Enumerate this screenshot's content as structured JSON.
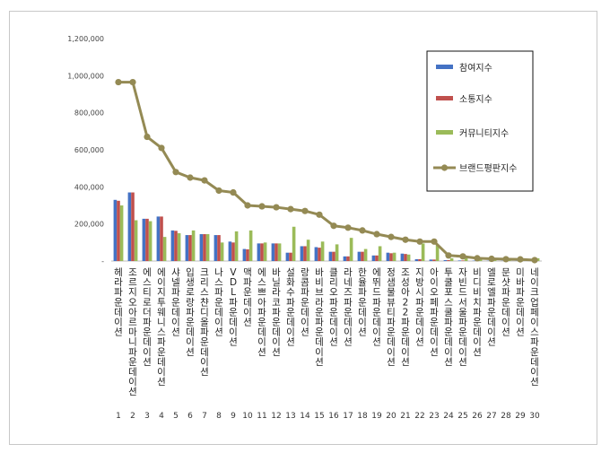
{
  "chart_data": {
    "type": "bar",
    "title": "",
    "xlabel": "",
    "ylabel": "",
    "ylim": [
      0,
      1200000
    ],
    "yticks": [
      "-",
      "200,000",
      "400,000",
      "600,000",
      "800,000",
      "1,000,000",
      "1,200,000"
    ],
    "grid": false,
    "legend_position": "right",
    "ranks": [
      "1",
      "2",
      "3",
      "4",
      "5",
      "6",
      "7",
      "8",
      "9",
      "10",
      "11",
      "12",
      "13",
      "14",
      "15",
      "16",
      "17",
      "18",
      "19",
      "20",
      "21",
      "22",
      "23",
      "24",
      "25",
      "26",
      "27",
      "28",
      "29",
      "30"
    ],
    "categories": [
      "헤라 파운데이션",
      "조르지오아르마니 파운데이션",
      "에스티로더 파운데이션",
      "에이지투웨니스 파운데이션",
      "샤넬 파운데이션",
      "입생로랑 파운데이션",
      "크리스챤디올 파운데이션",
      "나스 파운데이션",
      "VDL 파운데이션",
      "맥 파운데이션",
      "에스쁘아 파운데이션",
      "바닐라코 파운데이션",
      "설화수 파운데이션",
      "랑콤 파운데이션",
      "바비브라운 파운데이션",
      "클리오 파운데이션",
      "라네즈 파운데이션",
      "한율 파운데이션",
      "에뛰드 파운데이션",
      "정샘물뷰티 파운데이션",
      "조성아22 파운데이션",
      "지방시 파운데이션",
      "아이오페 파운데이션",
      "투쿨포스쿨 파운데이션",
      "자빈드서울 파운데이션",
      "비디비치 파운데이션",
      "엘로엘 파운데이션",
      "문샷 파운데이션",
      "미바 파운데이션",
      "네이크업페이스 파운데이션"
    ],
    "series": [
      {
        "name": "참여지수",
        "kind": "bar",
        "color": "#4472C4",
        "values": [
          330000,
          370000,
          228000,
          240000,
          165000,
          140000,
          145000,
          140000,
          105000,
          65000,
          95000,
          95000,
          45000,
          80000,
          75000,
          50000,
          25000,
          50000,
          30000,
          45000,
          40000,
          10000,
          8000,
          5000,
          3000,
          2000,
          1500,
          1000,
          800,
          500
        ]
      },
      {
        "name": "소통지수",
        "kind": "bar",
        "color": "#C0504D",
        "values": [
          325000,
          370000,
          228000,
          240000,
          163000,
          140000,
          145000,
          140000,
          100000,
          63000,
          95000,
          95000,
          45000,
          80000,
          72000,
          50000,
          25000,
          50000,
          30000,
          42000,
          38000,
          10000,
          8000,
          5000,
          3000,
          2000,
          1500,
          1000,
          800,
          500
        ]
      },
      {
        "name": "커뮤니티지수",
        "kind": "bar",
        "color": "#9BBB59",
        "values": [
          300000,
          220000,
          215000,
          130000,
          150000,
          165000,
          145000,
          100000,
          160000,
          165000,
          100000,
          95000,
          185000,
          115000,
          105000,
          90000,
          125000,
          65000,
          80000,
          45000,
          35000,
          95000,
          90000,
          15000,
          20000,
          10000,
          8000,
          10000,
          10000,
          15000
        ]
      },
      {
        "name": "브랜드평판지수",
        "kind": "line",
        "color": "#948A54",
        "values": [
          965000,
          965000,
          670000,
          610000,
          480000,
          450000,
          435000,
          380000,
          370000,
          300000,
          295000,
          290000,
          280000,
          270000,
          250000,
          190000,
          180000,
          165000,
          145000,
          130000,
          115000,
          105000,
          105000,
          30000,
          25000,
          15000,
          12000,
          10000,
          9000,
          5000
        ]
      }
    ]
  }
}
